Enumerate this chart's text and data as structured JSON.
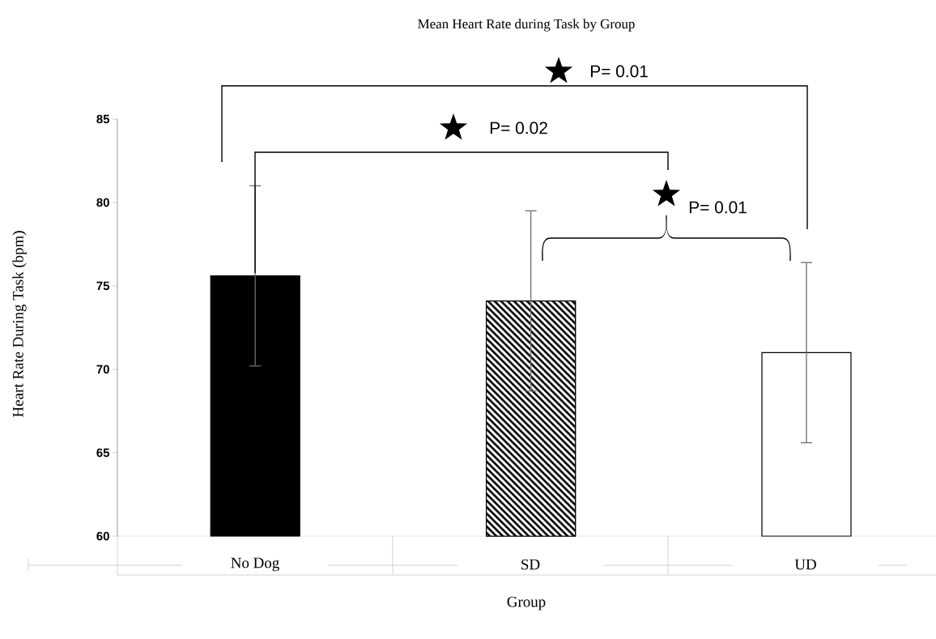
{
  "chart_data": {
    "type": "bar",
    "title": "Mean Heart Rate during Task by Group",
    "xlabel": "Group",
    "ylabel": "Heart Rate During Task (bpm)",
    "categories": [
      "No Dog",
      "SD",
      "UD"
    ],
    "values": [
      75.6,
      74.1,
      71.0
    ],
    "errors": [
      5.4,
      5.4,
      5.4
    ],
    "colors": [
      "#000000",
      "#000000",
      "#ffffff"
    ],
    "ylim": [
      60,
      85
    ],
    "yticks": [
      60,
      65,
      70,
      75,
      80,
      85
    ],
    "annotations": [
      "P= 0.01",
      "P= 0.02",
      "P= 0.01"
    ],
    "grid": false
  }
}
